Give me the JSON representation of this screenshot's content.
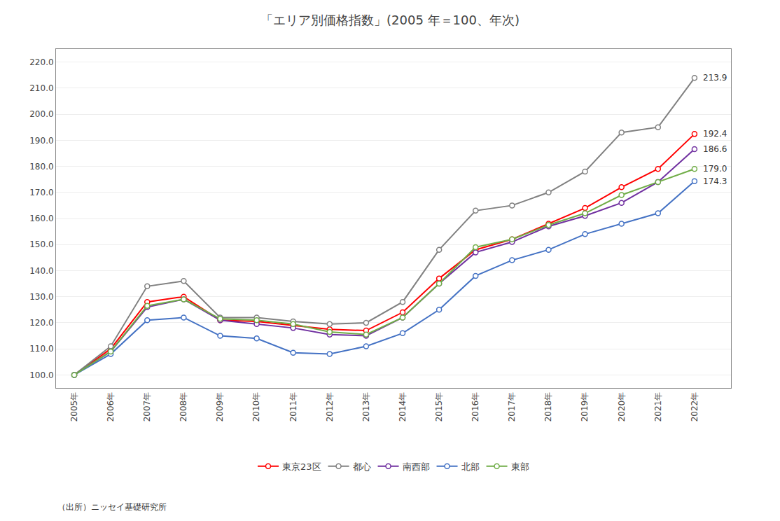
{
  "chart_data": {
    "type": "line",
    "title": "「エリア別価格指数」(2005 年＝100、年次)",
    "source": "（出所）ニッセイ基礎研究所",
    "x": [
      2005,
      2006,
      2007,
      2008,
      2009,
      2010,
      2011,
      2012,
      2013,
      2014,
      2015,
      2016,
      2017,
      2018,
      2019,
      2020,
      2021,
      2022
    ],
    "series": [
      {
        "name": "東京23区",
        "color": "#ff0000",
        "marker": "circle",
        "values": [
          100.0,
          110.0,
          128.0,
          130.0,
          121.0,
          120.5,
          119.0,
          117.5,
          117.0,
          124.0,
          137.0,
          148.0,
          152.0,
          158.0,
          164.0,
          172.0,
          179.0,
          192.4
        ]
      },
      {
        "name": "都心",
        "color": "#808080",
        "marker": "circle",
        "values": [
          100.0,
          111.0,
          134.0,
          136.0,
          122.0,
          122.0,
          120.5,
          119.5,
          120.0,
          128.0,
          148.0,
          163.0,
          165.0,
          170.0,
          178.0,
          193.0,
          195.0,
          213.9
        ]
      },
      {
        "name": "南西部",
        "color": "#7030a0",
        "marker": "circle",
        "values": [
          100.0,
          109.0,
          126.0,
          129.0,
          121.0,
          119.5,
          118.0,
          115.5,
          115.0,
          122.0,
          135.0,
          147.0,
          151.0,
          157.0,
          161.0,
          166.0,
          174.0,
          186.6
        ]
      },
      {
        "name": "北部",
        "color": "#4472c4",
        "marker": "circle",
        "values": [
          100.0,
          108.0,
          121.0,
          122.0,
          115.0,
          114.0,
          108.5,
          108.0,
          111.0,
          116.0,
          125.0,
          138.0,
          144.0,
          148.0,
          154.0,
          158.0,
          162.0,
          174.3
        ]
      },
      {
        "name": "東部",
        "color": "#70ad47",
        "marker": "circle",
        "values": [
          100.0,
          109.0,
          126.5,
          129.0,
          121.5,
          121.0,
          119.5,
          116.5,
          115.5,
          122.0,
          135.0,
          149.0,
          152.0,
          157.5,
          162.0,
          169.0,
          174.0,
          179.0
        ]
      }
    ],
    "annotations": [
      {
        "x": 2022,
        "y": 192.4,
        "text": "192.4"
      },
      {
        "x": 2022,
        "y": 213.9,
        "text": "213.9"
      },
      {
        "x": 2022,
        "y": 186.6,
        "text": "186.6"
      },
      {
        "x": 2022,
        "y": 174.3,
        "text": "174.3"
      },
      {
        "x": 2022,
        "y": 179.0,
        "text": "179.0"
      }
    ],
    "xlim": [
      2004.5,
      2023.0
    ],
    "xticks": [
      {
        "value": 2005,
        "label": "2005年"
      },
      {
        "value": 2006,
        "label": "2006年"
      },
      {
        "value": 2007,
        "label": "2007年"
      },
      {
        "value": 2008,
        "label": "2008年"
      },
      {
        "value": 2009,
        "label": "2009年"
      },
      {
        "value": 2010,
        "label": "2010年"
      },
      {
        "value": 2011,
        "label": "2011年"
      },
      {
        "value": 2012,
        "label": "2012年"
      },
      {
        "value": 2013,
        "label": "2013年"
      },
      {
        "value": 2014,
        "label": "2014年"
      },
      {
        "value": 2015,
        "label": "2015年"
      },
      {
        "value": 2016,
        "label": "2016年"
      },
      {
        "value": 2017,
        "label": "2017年"
      },
      {
        "value": 2018,
        "label": "2018年"
      },
      {
        "value": 2019,
        "label": "2019年"
      },
      {
        "value": 2020,
        "label": "2020年"
      },
      {
        "value": 2021,
        "label": "2021年"
      },
      {
        "value": 2022,
        "label": "2022年"
      }
    ],
    "ylim": [
      95.0,
      225.0
    ],
    "yticks": [
      {
        "value": 100.0,
        "label": "100.0"
      },
      {
        "value": 110.0,
        "label": "110.0"
      },
      {
        "value": 120.0,
        "label": "120.0"
      },
      {
        "value": 130.0,
        "label": "130.0"
      },
      {
        "value": 140.0,
        "label": "140.0"
      },
      {
        "value": 150.0,
        "label": "150.0"
      },
      {
        "value": 160.0,
        "label": "160.0"
      },
      {
        "value": 170.0,
        "label": "170.0"
      },
      {
        "value": 180.0,
        "label": "180.0"
      },
      {
        "value": 190.0,
        "label": "190.0"
      },
      {
        "value": 200.0,
        "label": "200.0"
      },
      {
        "value": 210.0,
        "label": "210.0"
      },
      {
        "value": 220.0,
        "label": "220.0"
      }
    ],
    "grid": true,
    "legend": "bottom"
  }
}
